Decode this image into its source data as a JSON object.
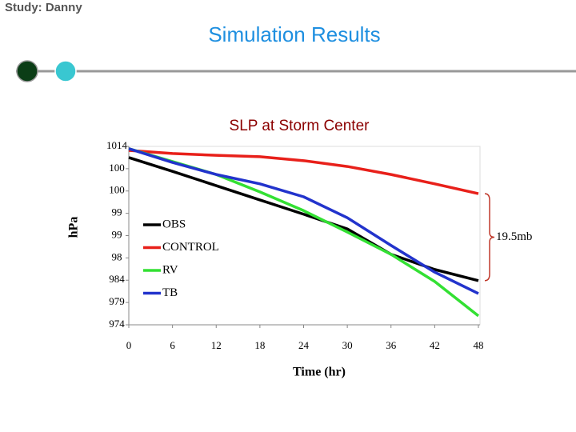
{
  "header": {
    "study": "Study: Danny",
    "title": "Simulation Results"
  },
  "chart_data": {
    "type": "line",
    "title": "SLP at Storm Center",
    "x_label": "Time (hr)",
    "y_label": "hPa",
    "x": [
      0,
      6,
      12,
      18,
      24,
      30,
      36,
      42,
      48
    ],
    "series": [
      {
        "name": "OBS",
        "color": "#000000",
        "values": [
          1011.5,
          1008.4,
          1005.2,
          1002,
          998.8,
          995.5,
          989.8,
          986.4,
          983.9
        ]
      },
      {
        "name": "CONTROL",
        "color": "#e8201a",
        "values": [
          1013.1,
          1012.4,
          1012,
          1011.7,
          1010.8,
          1009.5,
          1007.7,
          1005.6,
          1003.4
        ]
      },
      {
        "name": "RV",
        "color": "#33e033",
        "values": [
          1013.5,
          1010.6,
          1007.7,
          1003.8,
          999.6,
          994.8,
          989.8,
          983.7,
          976
        ]
      },
      {
        "name": "TB",
        "color": "#2233cc",
        "values": [
          1013.5,
          1010.4,
          1007.7,
          1005.6,
          1002.7,
          998,
          991.8,
          985.8,
          981
        ]
      }
    ],
    "xlim": [
      0,
      48
    ],
    "xticks": [
      0,
      6,
      12,
      18,
      24,
      30,
      36,
      42,
      48
    ],
    "ylim": [
      974,
      1014
    ],
    "yticks": [
      974,
      979,
      984,
      {
        "value": 989,
        "label": "98"
      },
      {
        "value": 994,
        "label": "99"
      },
      {
        "value": 999,
        "label": "99"
      },
      {
        "value": 1004,
        "label": "100"
      },
      {
        "value": 1009,
        "label": "100"
      },
      1014
    ],
    "grid": false,
    "legend": "center left",
    "annotation": "19.5mb"
  }
}
